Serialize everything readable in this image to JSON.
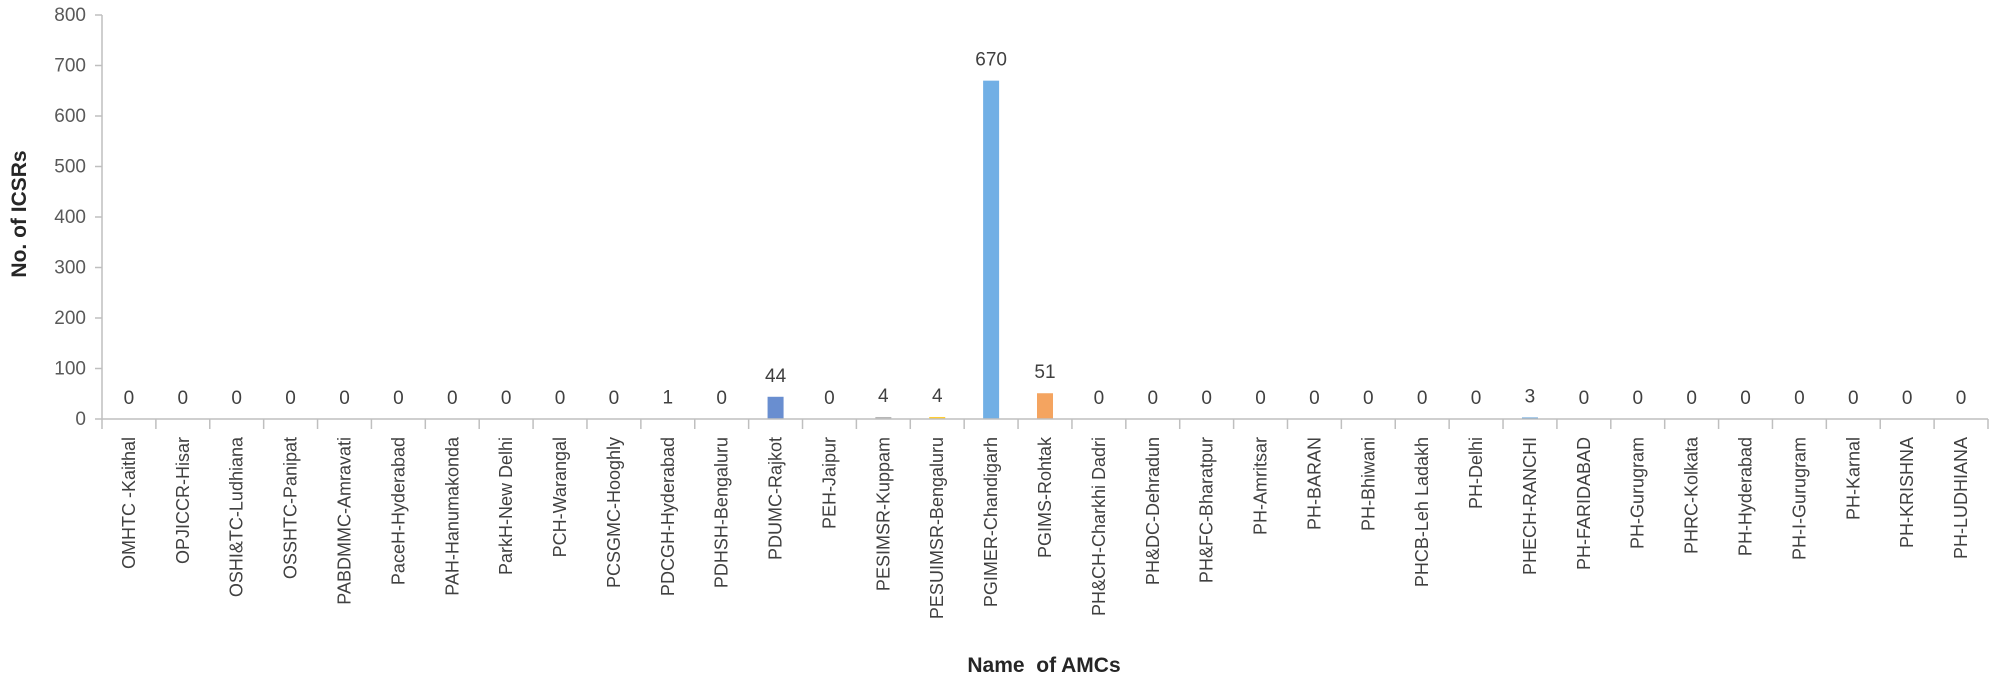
{
  "chart_data": {
    "type": "bar",
    "xlabel": "Name  of AMCs",
    "ylabel": "No. of ICSRs",
    "ylim": [
      0,
      800
    ],
    "yticks": [
      0,
      100,
      200,
      300,
      400,
      500,
      600,
      700,
      800
    ],
    "grid": false,
    "legend": "none",
    "categories": [
      "OMHTC -Kaithal",
      "OPJICCR-Hisar",
      "OSHI&TC-Ludhiana",
      "OSSHTC-Panipat",
      "PABDMMC-Amravati",
      "PaceH-Hyderabad",
      "PAH-Hanumakonda",
      "ParkH-New Delhi",
      "PCH-Warangal",
      "PCSGMC-Hooghly",
      "PDCGH-Hyderabad",
      "PDHSH-Bengaluru",
      "PDUMC-Rajkot",
      "PEH-Jaipur",
      "PESIMSR-Kuppam",
      "PESUIMSR-Bengaluru",
      "PGIMER-Chandigarh",
      "PGIMS-Rohtak",
      "PH&CH-Charkhi Dadri",
      "PH&DC-Dehradun",
      "PH&FC-Bharatpur",
      "PH-Amritsar",
      "PH-BARAN",
      "PH-Bhiwani",
      "PHCB-Leh Ladakh",
      "PH-Delhi",
      "PHECH-RANCHI",
      "PH-FARIDABAD",
      "PH-Gurugram",
      "PHRC-Kolkata",
      "PH-Hyderabad",
      "PH-I-Gurugram",
      "PH-Karnal",
      "PH-KRISHNA",
      "PH-LUDHIANA"
    ],
    "values": [
      0,
      0,
      0,
      0,
      0,
      0,
      0,
      0,
      0,
      0,
      1,
      0,
      44,
      0,
      4,
      4,
      670,
      51,
      0,
      0,
      0,
      0,
      0,
      0,
      0,
      0,
      3,
      0,
      0,
      0,
      0,
      0,
      0,
      0,
      0
    ],
    "colors": [
      "#4472c4",
      "#ed7d31",
      "#a5a5a5",
      "#ffc000",
      "#5b9bd5",
      "#70ad47",
      "#264478",
      "#9e480e",
      "#636363",
      "#997300",
      "#255e91",
      "#43682b",
      "#698ed0",
      "#f1975a",
      "#b7b7b7",
      "#ffcd33",
      "#71afe5",
      "#f4a460",
      "#7f7f7f",
      "#bf8f00",
      "#2e75b6",
      "#548235",
      "#4472c4",
      "#ed7d31",
      "#a5a5a5",
      "#ffc000",
      "#5b9bd5",
      "#70ad47",
      "#264478",
      "#9e480e",
      "#636363",
      "#997300",
      "#255e91",
      "#43682b",
      "#698ed0"
    ]
  }
}
